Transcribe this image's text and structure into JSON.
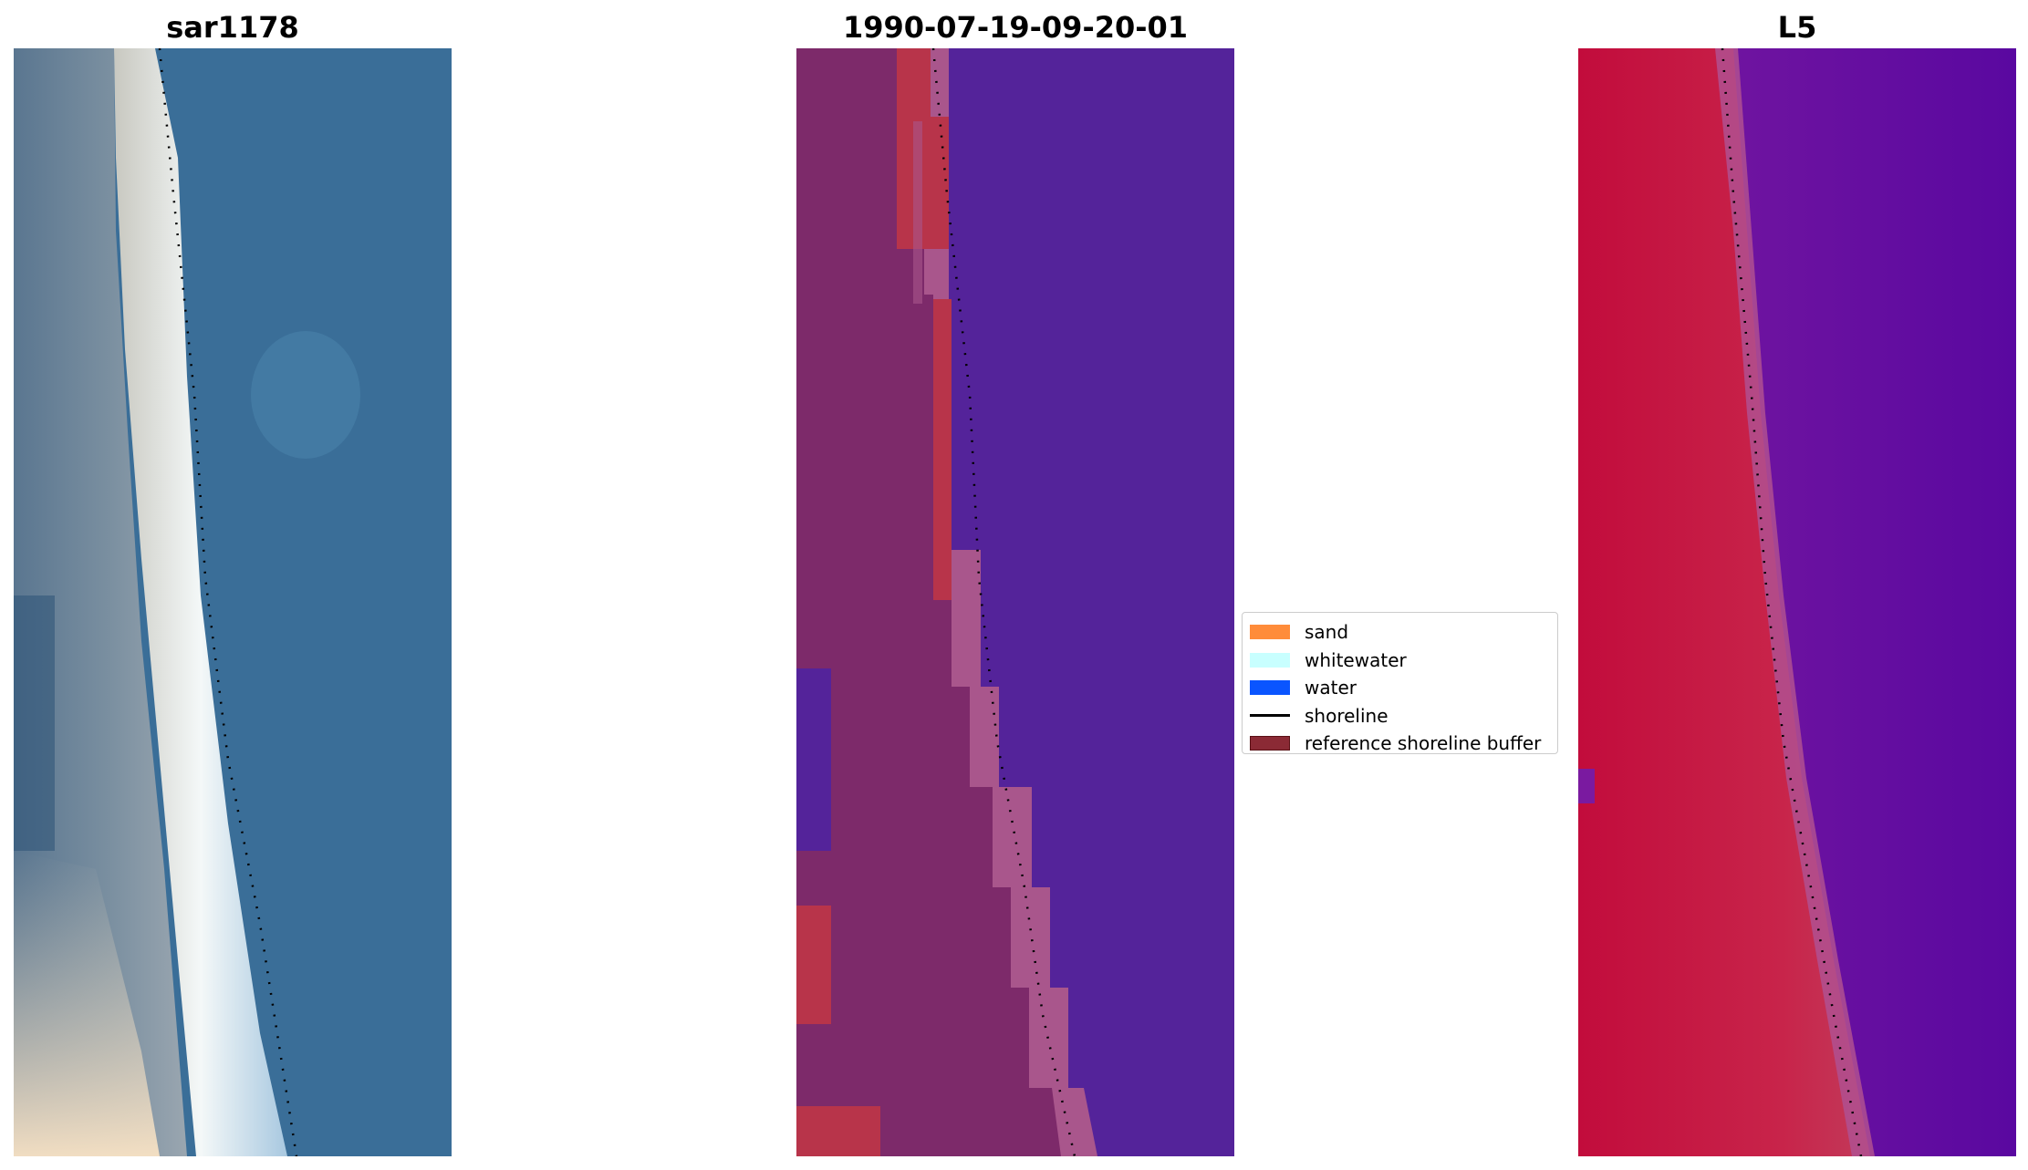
{
  "panels": [
    {
      "title": "sar1178"
    },
    {
      "title": "1990-07-19-09-20-01"
    },
    {
      "title": "L5"
    }
  ],
  "legend": {
    "items": [
      {
        "label": "sand",
        "color": "#ff8c3a"
      },
      {
        "label": "whitewater",
        "color": "#c8ffff"
      },
      {
        "label": "water",
        "color": "#0a55ff"
      },
      {
        "label": "shoreline",
        "color": "#000000"
      },
      {
        "label": "reference shoreline buffer",
        "color": "#8b2a35"
      }
    ]
  },
  "colors": {
    "rgb_water": "#3a6e98",
    "classified_water": "#54239a",
    "classified_buffer": "#7d2a6a",
    "classified_buffer_edge": "#a9568c",
    "classified_sand": "#b8344a",
    "index_land": "#c5123e",
    "index_water": "#66109e"
  }
}
